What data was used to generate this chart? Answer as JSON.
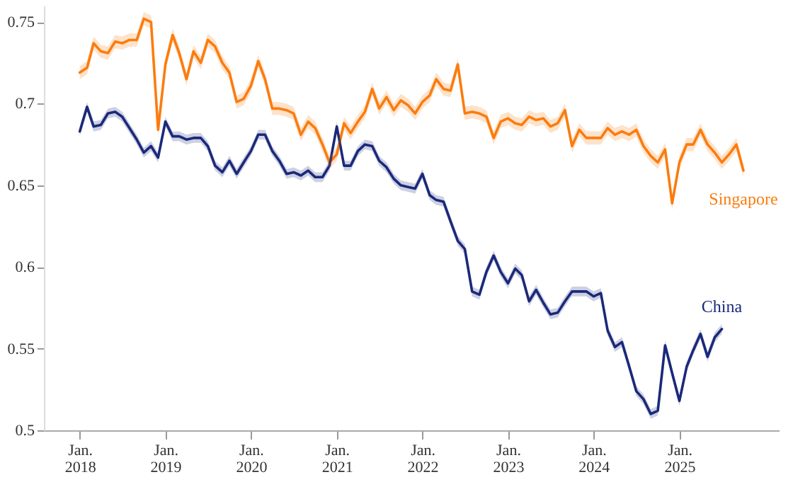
{
  "chart_data": {
    "type": "line",
    "x": [
      "2018-01",
      "2018-02",
      "2018-03",
      "2018-04",
      "2018-05",
      "2018-06",
      "2018-07",
      "2018-08",
      "2018-09",
      "2018-10",
      "2018-11",
      "2018-12",
      "2019-01",
      "2019-02",
      "2019-03",
      "2019-04",
      "2019-05",
      "2019-06",
      "2019-07",
      "2019-08",
      "2019-09",
      "2019-10",
      "2019-11",
      "2019-12",
      "2020-01",
      "2020-02",
      "2020-03",
      "2020-04",
      "2020-05",
      "2020-06",
      "2020-07",
      "2020-08",
      "2020-09",
      "2020-10",
      "2020-11",
      "2020-12",
      "2021-01",
      "2021-02",
      "2021-03",
      "2021-04",
      "2021-05",
      "2021-06",
      "2021-07",
      "2021-08",
      "2021-09",
      "2021-10",
      "2021-11",
      "2021-12",
      "2022-01",
      "2022-02",
      "2022-03",
      "2022-04",
      "2022-05",
      "2022-06",
      "2022-07",
      "2022-08",
      "2022-09",
      "2022-10",
      "2022-11",
      "2022-12",
      "2023-01",
      "2023-02",
      "2023-03",
      "2023-04",
      "2023-05",
      "2023-06",
      "2023-07",
      "2023-08",
      "2023-09",
      "2023-10",
      "2023-11",
      "2023-12",
      "2024-01",
      "2024-02",
      "2024-03",
      "2024-04",
      "2024-05",
      "2024-06",
      "2024-07",
      "2024-08",
      "2024-09",
      "2024-10",
      "2024-11",
      "2024-12",
      "2025-01",
      "2025-02",
      "2025-03",
      "2025-04",
      "2025-05",
      "2025-06",
      "2025-07",
      "2025-08",
      "2025-09",
      "2025-10"
    ],
    "series": [
      {
        "name": "Singapore",
        "color": "#fb7d0f",
        "values": [
          0.719,
          0.722,
          0.737,
          0.732,
          0.731,
          0.738,
          0.737,
          0.739,
          0.739,
          0.752,
          0.75,
          0.684,
          0.724,
          0.742,
          0.731,
          0.715,
          0.732,
          0.725,
          0.739,
          0.735,
          0.725,
          0.719,
          0.701,
          0.703,
          0.711,
          0.726,
          0.715,
          0.697,
          0.697,
          0.696,
          0.694,
          0.681,
          0.689,
          0.685,
          0.675,
          0.664,
          0.669,
          0.688,
          0.682,
          0.689,
          0.695,
          0.709,
          0.697,
          0.704,
          0.696,
          0.702,
          0.699,
          0.694,
          0.701,
          0.705,
          0.715,
          0.709,
          0.708,
          0.724,
          0.694,
          0.695,
          0.694,
          0.692,
          0.679,
          0.689,
          0.691,
          0.688,
          0.687,
          0.692,
          0.69,
          0.691,
          0.686,
          0.688,
          0.696,
          0.674,
          0.684,
          0.679,
          0.679,
          0.679,
          0.685,
          0.681,
          0.683,
          0.681,
          0.684,
          0.674,
          0.668,
          0.664,
          0.672,
          0.639,
          0.664,
          0.675,
          0.675,
          0.684,
          0.675,
          0.67,
          0.664,
          0.669,
          0.675,
          0.659
        ],
        "lower": [
          0.715,
          0.718,
          0.733,
          0.728,
          0.727,
          0.734,
          0.733,
          0.735,
          0.735,
          0.748,
          0.746,
          0.68,
          0.72,
          0.738,
          0.727,
          0.711,
          0.728,
          0.721,
          0.735,
          0.731,
          0.721,
          0.715,
          0.697,
          0.699,
          0.707,
          0.722,
          0.711,
          0.693,
          0.693,
          0.692,
          0.69,
          0.677,
          0.685,
          0.681,
          0.671,
          0.66,
          0.665,
          0.684,
          0.678,
          0.685,
          0.691,
          0.705,
          0.693,
          0.7,
          0.692,
          0.698,
          0.695,
          0.69,
          0.697,
          0.701,
          0.711,
          0.705,
          0.704,
          0.72,
          0.69,
          0.691,
          0.69,
          0.688,
          0.675,
          0.685,
          0.687,
          0.684,
          0.683,
          0.688,
          0.686,
          0.687,
          0.682,
          0.684,
          0.692,
          0.67,
          0.68,
          0.675,
          0.675,
          0.675,
          0.681,
          0.677,
          0.679,
          0.677,
          0.68,
          0.67,
          0.664,
          0.66,
          0.668,
          0.635,
          0.66,
          0.671,
          0.671,
          0.68,
          0.671,
          0.666,
          0.66,
          0.665,
          0.671,
          0.655
        ],
        "upper": [
          0.723,
          0.726,
          0.741,
          0.736,
          0.735,
          0.742,
          0.741,
          0.743,
          0.743,
          0.756,
          0.754,
          0.688,
          0.728,
          0.746,
          0.735,
          0.719,
          0.736,
          0.729,
          0.743,
          0.739,
          0.729,
          0.723,
          0.705,
          0.707,
          0.715,
          0.73,
          0.719,
          0.701,
          0.701,
          0.7,
          0.698,
          0.685,
          0.693,
          0.689,
          0.679,
          0.668,
          0.673,
          0.692,
          0.686,
          0.693,
          0.699,
          0.713,
          0.701,
          0.708,
          0.7,
          0.706,
          0.703,
          0.698,
          0.705,
          0.709,
          0.719,
          0.713,
          0.712,
          0.728,
          0.698,
          0.699,
          0.698,
          0.696,
          0.683,
          0.693,
          0.695,
          0.692,
          0.691,
          0.696,
          0.694,
          0.695,
          0.69,
          0.692,
          0.7,
          0.678,
          0.688,
          0.683,
          0.683,
          0.683,
          0.689,
          0.685,
          0.687,
          0.685,
          0.688,
          0.678,
          0.672,
          0.668,
          0.676,
          0.643,
          0.668,
          0.679,
          0.679,
          0.688,
          0.679,
          0.674,
          0.668,
          0.673,
          0.679,
          0.663
        ]
      },
      {
        "name": "China",
        "color": "#1b2a7a",
        "values": [
          0.683,
          0.698,
          0.686,
          0.687,
          0.694,
          0.695,
          0.692,
          0.685,
          0.678,
          0.67,
          0.674,
          0.667,
          0.689,
          0.68,
          0.68,
          0.678,
          0.679,
          0.679,
          0.674,
          0.662,
          0.658,
          0.665,
          0.657,
          0.664,
          0.671,
          0.681,
          0.681,
          0.671,
          0.665,
          0.657,
          0.658,
          0.656,
          0.659,
          0.655,
          0.655,
          0.662,
          0.686,
          0.662,
          0.662,
          0.671,
          0.675,
          0.674,
          0.665,
          0.661,
          0.654,
          0.65,
          0.649,
          0.648,
          0.657,
          0.644,
          0.641,
          0.64,
          0.628,
          0.616,
          0.611,
          0.585,
          0.583,
          0.597,
          0.607,
          0.597,
          0.59,
          0.599,
          0.595,
          0.579,
          0.586,
          0.578,
          0.571,
          0.572,
          0.579,
          0.585,
          0.585,
          0.585,
          0.582,
          0.584,
          0.561,
          0.551,
          0.554,
          0.539,
          0.524,
          0.519,
          0.51,
          0.512,
          0.552,
          0.535,
          0.518,
          0.539,
          0.549,
          0.559,
          0.545,
          0.557,
          0.562,
          null,
          null,
          null
        ],
        "lower": [
          0.68,
          0.695,
          0.683,
          0.684,
          0.691,
          0.692,
          0.689,
          0.682,
          0.675,
          0.667,
          0.671,
          0.664,
          0.686,
          0.677,
          0.677,
          0.675,
          0.676,
          0.676,
          0.671,
          0.659,
          0.655,
          0.662,
          0.654,
          0.661,
          0.668,
          0.678,
          0.678,
          0.668,
          0.662,
          0.654,
          0.655,
          0.653,
          0.656,
          0.652,
          0.652,
          0.659,
          0.683,
          0.659,
          0.659,
          0.668,
          0.672,
          0.671,
          0.662,
          0.658,
          0.651,
          0.647,
          0.646,
          0.645,
          0.654,
          0.641,
          0.638,
          0.637,
          0.625,
          0.613,
          0.608,
          0.582,
          0.58,
          0.594,
          0.604,
          0.594,
          0.587,
          0.596,
          0.592,
          0.576,
          0.583,
          0.575,
          0.568,
          0.569,
          0.576,
          0.582,
          0.582,
          0.582,
          0.579,
          0.581,
          0.558,
          0.548,
          0.551,
          0.536,
          0.521,
          0.516,
          0.507,
          0.509,
          0.549,
          0.532,
          0.515,
          0.536,
          0.546,
          0.556,
          0.542,
          0.554,
          0.559,
          null,
          null,
          null
        ],
        "upper": [
          0.686,
          0.701,
          0.689,
          0.69,
          0.697,
          0.698,
          0.695,
          0.688,
          0.681,
          0.673,
          0.677,
          0.67,
          0.692,
          0.683,
          0.683,
          0.681,
          0.682,
          0.682,
          0.677,
          0.665,
          0.661,
          0.668,
          0.66,
          0.667,
          0.674,
          0.684,
          0.684,
          0.674,
          0.668,
          0.66,
          0.661,
          0.659,
          0.662,
          0.658,
          0.658,
          0.665,
          0.689,
          0.665,
          0.665,
          0.674,
          0.678,
          0.677,
          0.668,
          0.664,
          0.657,
          0.653,
          0.652,
          0.651,
          0.66,
          0.647,
          0.644,
          0.643,
          0.631,
          0.619,
          0.614,
          0.588,
          0.586,
          0.6,
          0.61,
          0.6,
          0.593,
          0.602,
          0.598,
          0.582,
          0.589,
          0.581,
          0.574,
          0.575,
          0.582,
          0.588,
          0.588,
          0.588,
          0.585,
          0.587,
          0.564,
          0.554,
          0.557,
          0.542,
          0.527,
          0.522,
          0.513,
          0.515,
          0.555,
          0.538,
          0.521,
          0.542,
          0.552,
          0.562,
          0.548,
          0.56,
          0.565,
          null,
          null,
          null
        ]
      }
    ],
    "xlim": [
      "2017-08",
      "2026-03"
    ],
    "xticks": [
      {
        "value": "2018-01",
        "label": "Jan. 2018"
      },
      {
        "value": "2019-01",
        "label": "Jan. 2019"
      },
      {
        "value": "2020-01",
        "label": "Jan. 2020"
      },
      {
        "value": "2021-01",
        "label": "Jan. 2021"
      },
      {
        "value": "2022-01",
        "label": "Jan. 2022"
      },
      {
        "value": "2023-01",
        "label": "Jan. 2023"
      },
      {
        "value": "2024-01",
        "label": "Jan. 2024"
      },
      {
        "value": "2025-01",
        "label": "Jan. 2025"
      }
    ],
    "ylim": [
      0.5,
      0.76
    ],
    "yticks": [
      0.5,
      0.55,
      0.6,
      0.65,
      0.7,
      0.75
    ]
  }
}
